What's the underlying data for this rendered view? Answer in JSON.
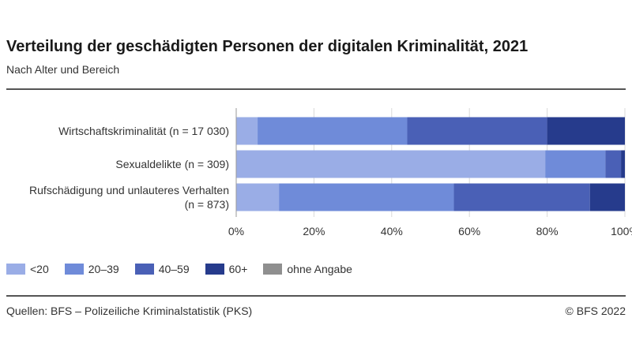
{
  "title": "Verteilung der geschädigten Personen der digitalen Kriminalität, 2021",
  "subtitle": "Nach Alter und Bereich",
  "source": "Quellen: BFS – Polizeiliche Kriminalstatistik (PKS)",
  "copyright": "© BFS 2022",
  "chart_data": {
    "type": "bar",
    "orientation": "horizontal",
    "stacked": true,
    "categories": [
      [
        "Wirtschaftskriminalität (n = 17 030)"
      ],
      [
        "Sexualdelikte (n = 309)"
      ],
      [
        "Rufschädigung und unlauteres Verhalten",
        "(n = 873)"
      ]
    ],
    "series": [
      {
        "name": "<20",
        "color": "#9aade6",
        "values": [
          5.5,
          79.5,
          11
        ]
      },
      {
        "name": "20–39",
        "color": "#6f8bd9",
        "values": [
          38.5,
          15.5,
          45
        ]
      },
      {
        "name": "40–59",
        "color": "#4a60b6",
        "values": [
          36,
          4,
          35
        ]
      },
      {
        "name": "60+",
        "color": "#263b8c",
        "values": [
          20,
          1,
          9
        ]
      },
      {
        "name": "ohne Angabe",
        "color": "#8f8f8f",
        "values": [
          0,
          0,
          0
        ]
      }
    ],
    "xlim": [
      0,
      100
    ],
    "xticks": [
      "0%",
      "20%",
      "40%",
      "60%",
      "80%",
      "100%"
    ],
    "grid": true,
    "legend_position": "bottom-left"
  }
}
